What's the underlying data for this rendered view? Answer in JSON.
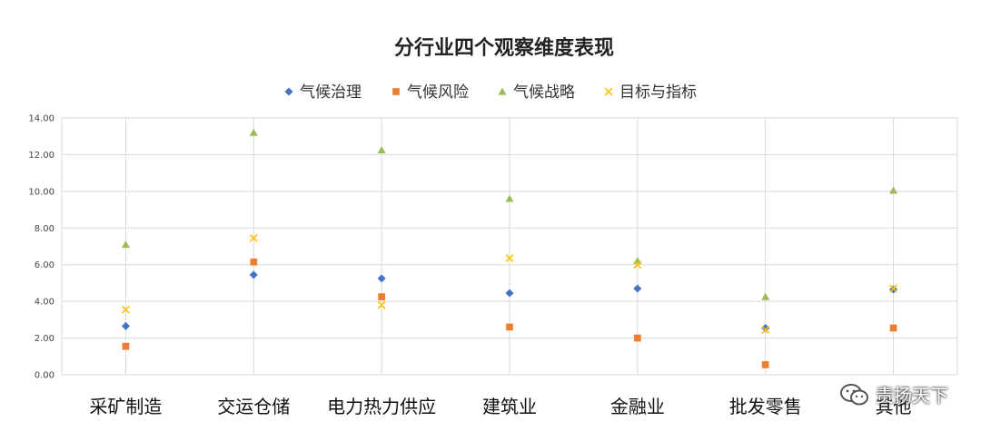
{
  "chart_data": {
    "type": "scatter",
    "title": "分行业四个观察维度表现",
    "categories": [
      "采矿制造",
      "交运仓储",
      "电力热力供应",
      "建筑业",
      "金融业",
      "批发零售",
      "其他"
    ],
    "ylim": [
      0,
      14
    ],
    "yticks": [
      "0.00",
      "2.00",
      "4.00",
      "6.00",
      "8.00",
      "10.00",
      "12.00",
      "14.00"
    ],
    "grid": true,
    "legend_position": "top",
    "series": [
      {
        "name": "气候治理",
        "marker": "diamond",
        "color": "#4472c4",
        "values": [
          2.65,
          5.45,
          5.25,
          4.45,
          4.7,
          2.55,
          4.65
        ]
      },
      {
        "name": "气候风险",
        "marker": "square",
        "color": "#ed7d31",
        "values": [
          1.55,
          6.15,
          4.25,
          2.6,
          2.0,
          0.55,
          2.55
        ]
      },
      {
        "name": "气候战略",
        "marker": "triangle",
        "color": "#9bbb59",
        "values": [
          7.1,
          13.2,
          12.25,
          9.6,
          6.2,
          4.25,
          10.05
        ]
      },
      {
        "name": "目标与指标",
        "marker": "x",
        "color": "#ffc000",
        "values": [
          3.55,
          7.45,
          3.8,
          6.35,
          6.0,
          2.45,
          4.7
        ]
      }
    ]
  },
  "watermark": {
    "text": "责扬天下",
    "icon": "wechat-icon"
  }
}
